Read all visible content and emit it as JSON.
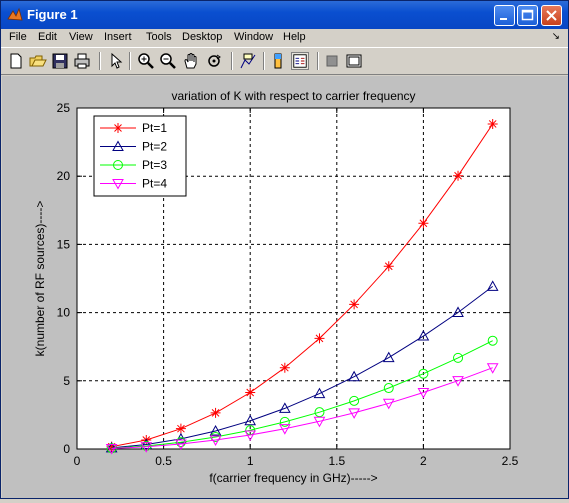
{
  "window": {
    "title": "Figure 1"
  },
  "menu": {
    "items": [
      "File",
      "Edit",
      "View",
      "Insert",
      "Tools",
      "Desktop",
      "Window",
      "Help"
    ],
    "overflow_glyph": "↘"
  },
  "toolbar": {
    "tools": [
      "new-figure",
      "open-file",
      "save-figure",
      "print-figure",
      "edit-plot",
      "zoom-in",
      "zoom-out",
      "pan",
      "rotate-3d",
      "data-cursor",
      "colorbar",
      "legend",
      "hide-plot-tools",
      "show-plot-tools"
    ]
  },
  "colors": {
    "pt1": "#ff0000",
    "pt2": "#000080",
    "pt3": "#00ff00",
    "pt4": "#ff00ff",
    "titlebar": "#0846c4"
  },
  "chart_data": {
    "type": "line",
    "title": "variation of K with respect to carrier frequency",
    "xlabel": "f(carrier frequency in GHz)----->",
    "ylabel": "k(number of RF sources)---->",
    "xlim": [
      0,
      2.5
    ],
    "ylim": [
      0,
      25
    ],
    "xticks": [
      "0",
      "0.5",
      "1",
      "1.5",
      "2",
      "2.5"
    ],
    "yticks": [
      "0",
      "5",
      "10",
      "15",
      "20",
      "25"
    ],
    "grid": true,
    "legend_position": "top-left",
    "x": [
      0.2,
      0.4,
      0.6,
      0.8,
      1.0,
      1.2,
      1.4,
      1.6,
      1.8,
      2.0,
      2.2,
      2.4
    ],
    "series": [
      {
        "name": "Pt=1",
        "marker": "star",
        "values": [
          0.17,
          0.66,
          1.49,
          2.65,
          4.14,
          5.96,
          8.11,
          10.6,
          13.4,
          16.55,
          20.03,
          23.83
        ]
      },
      {
        "name": "Pt=2",
        "marker": "triangle-up",
        "values": [
          0.08,
          0.33,
          0.74,
          1.32,
          2.07,
          2.98,
          4.06,
          5.3,
          6.7,
          8.28,
          10.01,
          11.92
        ]
      },
      {
        "name": "Pt=3",
        "marker": "circle",
        "values": [
          0.055,
          0.22,
          0.5,
          0.88,
          1.38,
          1.99,
          2.7,
          3.53,
          4.47,
          5.52,
          6.68,
          7.94
        ]
      },
      {
        "name": "Pt=4",
        "marker": "triangle-down",
        "values": [
          0.04,
          0.17,
          0.37,
          0.66,
          1.03,
          1.49,
          2.03,
          2.65,
          3.35,
          4.14,
          5.01,
          5.96
        ]
      }
    ]
  }
}
